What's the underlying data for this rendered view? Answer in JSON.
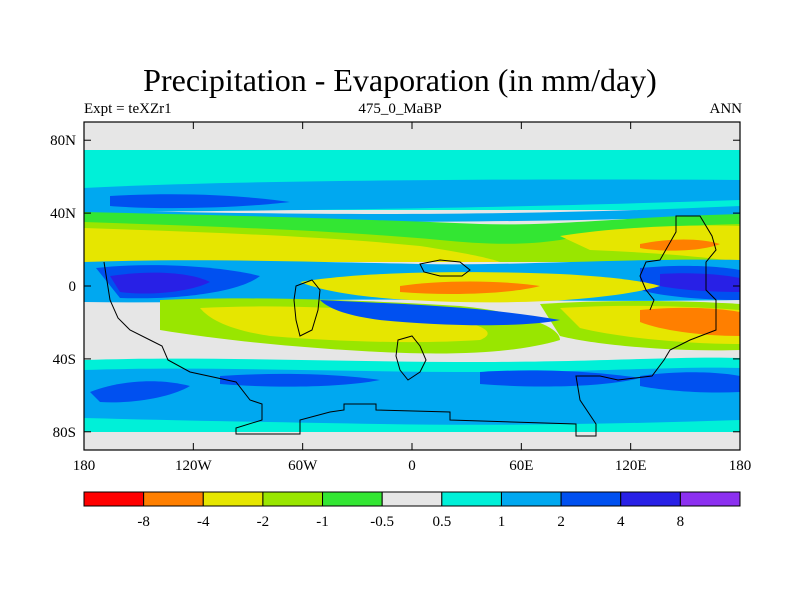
{
  "title": "Precipitation - Evaporation (in mm/day)",
  "subtitle_left": "Expt = teXZr1",
  "subtitle_center": "475_0_MaBP",
  "subtitle_right": "ANN",
  "map": {
    "lon_range": [
      -180,
      180
    ],
    "lat_range": [
      -90,
      90
    ],
    "lat_ticks": [
      {
        "value": 80,
        "label": "80N"
      },
      {
        "value": 40,
        "label": "40N"
      },
      {
        "value": 0,
        "label": "0"
      },
      {
        "value": -40,
        "label": "40S"
      },
      {
        "value": -80,
        "label": "80S"
      }
    ],
    "lon_ticks": [
      {
        "value": -180,
        "label": "180"
      },
      {
        "value": -120,
        "label": "120W"
      },
      {
        "value": -60,
        "label": "60W"
      },
      {
        "value": 0,
        "label": "0"
      },
      {
        "value": 60,
        "label": "60E"
      },
      {
        "value": 120,
        "label": "120E"
      },
      {
        "value": 180,
        "label": "180"
      }
    ]
  },
  "colorbar": {
    "colors": [
      "#ff0000",
      "#ff7f00",
      "#e6e600",
      "#99e600",
      "#33e633",
      "#e6e6e6",
      "#00f0d8",
      "#00a8f0",
      "#0050f0",
      "#2820e6",
      "#8c30f0"
    ],
    "labels": [
      "-8",
      "-4",
      "-2",
      "-1",
      "-0.5",
      "0.5",
      "1",
      "2",
      "4",
      "8"
    ]
  },
  "colors": {
    "land": "#e6e6e6",
    "outline": "#000000"
  }
}
